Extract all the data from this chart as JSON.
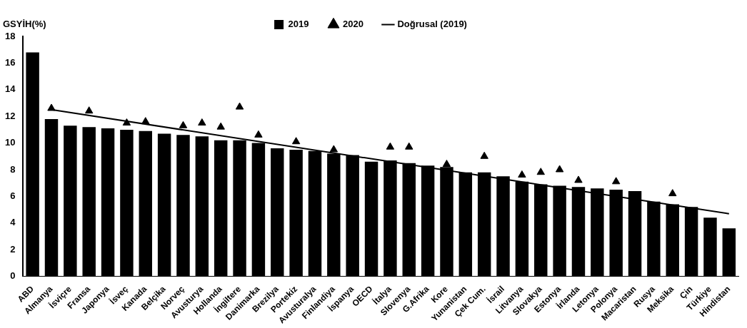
{
  "chart_data": {
    "type": "bar",
    "ylabel": "GSYİH(%)",
    "categories": [
      "ABD",
      "Almanya",
      "İsviçre",
      "Fransa",
      "Japonya",
      "İsveç",
      "Kanada",
      "Belçika",
      "Norveç",
      "Avusturya",
      "Hollanda",
      "İngiltere",
      "Danimarka",
      "Brezilya",
      "Portekiz",
      "Avusturalya",
      "Finlandiya",
      "İspanya",
      "OECD",
      "İtalya",
      "Slovenya",
      "G.Afrika",
      "Kore",
      "Yunanistan",
      "Çek Cum.",
      "İsrail",
      "Litvanya",
      "Slovakya",
      "Estonya",
      "İrlanda",
      "Letonya",
      "Polonya",
      "Macaristan",
      "Rusya",
      "Meksika",
      "Çin",
      "Türkiye",
      "Hindistan"
    ],
    "series": [
      {
        "name": "2019",
        "color": "#000000",
        "values": [
          16.8,
          11.8,
          11.3,
          11.2,
          11.1,
          11.0,
          10.9,
          10.7,
          10.6,
          10.5,
          10.2,
          10.2,
          10.0,
          9.6,
          9.5,
          9.4,
          9.2,
          9.1,
          8.6,
          8.7,
          8.5,
          8.3,
          8.2,
          7.8,
          7.8,
          7.5,
          7.1,
          6.9,
          6.8,
          6.7,
          6.6,
          6.5,
          6.4,
          5.6,
          5.4,
          5.2,
          4.4,
          3.6
        ]
      },
      {
        "name": "2020",
        "type": "scatter",
        "marker": "triangle",
        "color": "#000000",
        "values": [
          null,
          12.6,
          null,
          12.4,
          null,
          11.5,
          11.6,
          null,
          11.3,
          11.5,
          11.2,
          12.7,
          10.6,
          null,
          10.1,
          null,
          9.5,
          null,
          null,
          9.7,
          9.7,
          null,
          8.4,
          null,
          9.0,
          null,
          7.6,
          7.8,
          8.0,
          7.2,
          null,
          7.1,
          null,
          null,
          6.2,
          null,
          null,
          null
        ]
      },
      {
        "name": "Doğrusal (2019)",
        "type": "line",
        "marker": "none",
        "color": "#000000",
        "values": [
          null,
          12.5,
          null,
          null,
          null,
          null,
          null,
          null,
          null,
          null,
          null,
          null,
          null,
          null,
          null,
          null,
          null,
          null,
          null,
          null,
          null,
          null,
          null,
          null,
          null,
          null,
          null,
          null,
          null,
          null,
          null,
          null,
          null,
          null,
          null,
          null,
          null,
          4.7
        ]
      }
    ],
    "ylim": [
      0,
      18
    ],
    "yticks": [
      0,
      2,
      4,
      6,
      8,
      10,
      12,
      14,
      16,
      18
    ],
    "grid": false,
    "legend": "top"
  }
}
